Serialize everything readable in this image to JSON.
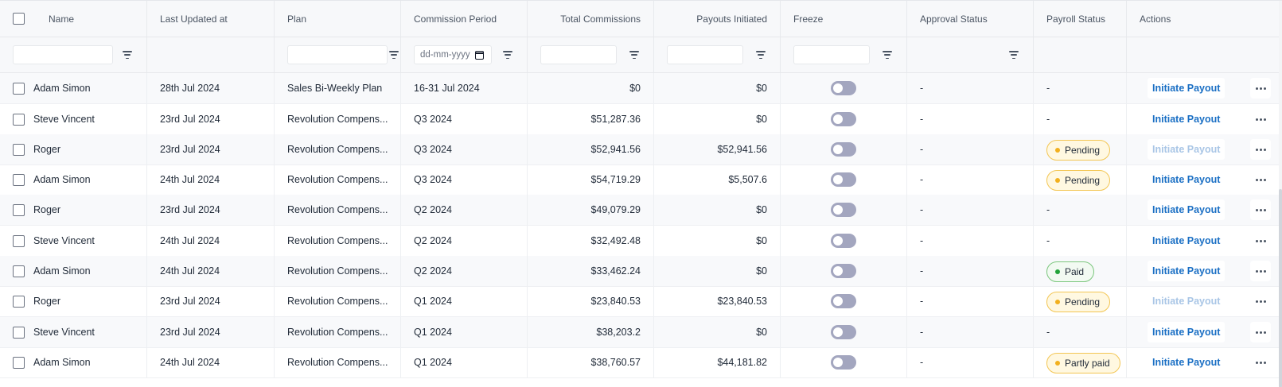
{
  "columns": {
    "name": "Name",
    "last_updated": "Last Updated at",
    "plan": "Plan",
    "commission_period": "Commission Period",
    "total_commissions": "Total Commissions",
    "payouts_initiated": "Payouts Initiated",
    "freeze": "Freeze",
    "approval_status": "Approval Status",
    "payroll_status": "Payroll Status",
    "actions": "Actions"
  },
  "filters": {
    "date_placeholder": "dd-mm-yyyy"
  },
  "rows": [
    {
      "name": "Adam Simon",
      "last_updated": "28th Jul 2024",
      "plan": "Sales Bi-Weekly Plan",
      "period": "16-31 Jul 2024",
      "total": "$0",
      "payouts": "$0",
      "freeze": false,
      "approval": "-",
      "payroll": "-",
      "payroll_type": "none",
      "action": "Initiate Payout",
      "action_enabled": true
    },
    {
      "name": "Steve Vincent",
      "last_updated": "23rd Jul 2024",
      "plan": "Revolution Compens...",
      "period": "Q3 2024",
      "total": "$51,287.36",
      "payouts": "$0",
      "freeze": false,
      "approval": "-",
      "payroll": "-",
      "payroll_type": "none",
      "action": "Initiate Payout",
      "action_enabled": true
    },
    {
      "name": "Roger",
      "last_updated": "23rd Jul 2024",
      "plan": "Revolution Compens...",
      "period": "Q3 2024",
      "total": "$52,941.56",
      "payouts": "$52,941.56",
      "freeze": false,
      "approval": "-",
      "payroll": "Pending",
      "payroll_type": "pending",
      "action": "Initiate Payout",
      "action_enabled": false
    },
    {
      "name": "Adam Simon",
      "last_updated": "24th Jul 2024",
      "plan": "Revolution Compens...",
      "period": "Q3 2024",
      "total": "$54,719.29",
      "payouts": "$5,507.6",
      "freeze": false,
      "approval": "-",
      "payroll": "Pending",
      "payroll_type": "pending",
      "action": "Initiate Payout",
      "action_enabled": true
    },
    {
      "name": "Roger",
      "last_updated": "23rd Jul 2024",
      "plan": "Revolution Compens...",
      "period": "Q2 2024",
      "total": "$49,079.29",
      "payouts": "$0",
      "freeze": false,
      "approval": "-",
      "payroll": "-",
      "payroll_type": "none",
      "action": "Initiate Payout",
      "action_enabled": true
    },
    {
      "name": "Steve Vincent",
      "last_updated": "24th Jul 2024",
      "plan": "Revolution Compens...",
      "period": "Q2 2024",
      "total": "$32,492.48",
      "payouts": "$0",
      "freeze": false,
      "approval": "-",
      "payroll": "-",
      "payroll_type": "none",
      "action": "Initiate Payout",
      "action_enabled": true
    },
    {
      "name": "Adam Simon",
      "last_updated": "24th Jul 2024",
      "plan": "Revolution Compens...",
      "period": "Q2 2024",
      "total": "$33,462.24",
      "payouts": "$0",
      "freeze": false,
      "approval": "-",
      "payroll": "Paid",
      "payroll_type": "paid",
      "action": "Initiate Payout",
      "action_enabled": true
    },
    {
      "name": "Roger",
      "last_updated": "23rd Jul 2024",
      "plan": "Revolution Compens...",
      "period": "Q1 2024",
      "total": "$23,840.53",
      "payouts": "$23,840.53",
      "freeze": false,
      "approval": "-",
      "payroll": "Pending",
      "payroll_type": "pending",
      "action": "Initiate Payout",
      "action_enabled": false
    },
    {
      "name": "Steve Vincent",
      "last_updated": "23rd Jul 2024",
      "plan": "Revolution Compens...",
      "period": "Q1 2024",
      "total": "$38,203.2",
      "payouts": "$0",
      "freeze": false,
      "approval": "-",
      "payroll": "-",
      "payroll_type": "none",
      "action": "Initiate Payout",
      "action_enabled": true
    },
    {
      "name": "Adam Simon",
      "last_updated": "24th Jul 2024",
      "plan": "Revolution Compens...",
      "period": "Q1 2024",
      "total": "$38,760.57",
      "payouts": "$44,181.82",
      "freeze": false,
      "approval": "-",
      "payroll": "Partly paid",
      "payroll_type": "partly",
      "action": "Initiate Payout",
      "action_enabled": true
    }
  ],
  "colors": {
    "accent": "#1a6fc4",
    "toggle_off": "#a3a6bf",
    "pending": "#f2b01e",
    "paid": "#22a33a"
  }
}
